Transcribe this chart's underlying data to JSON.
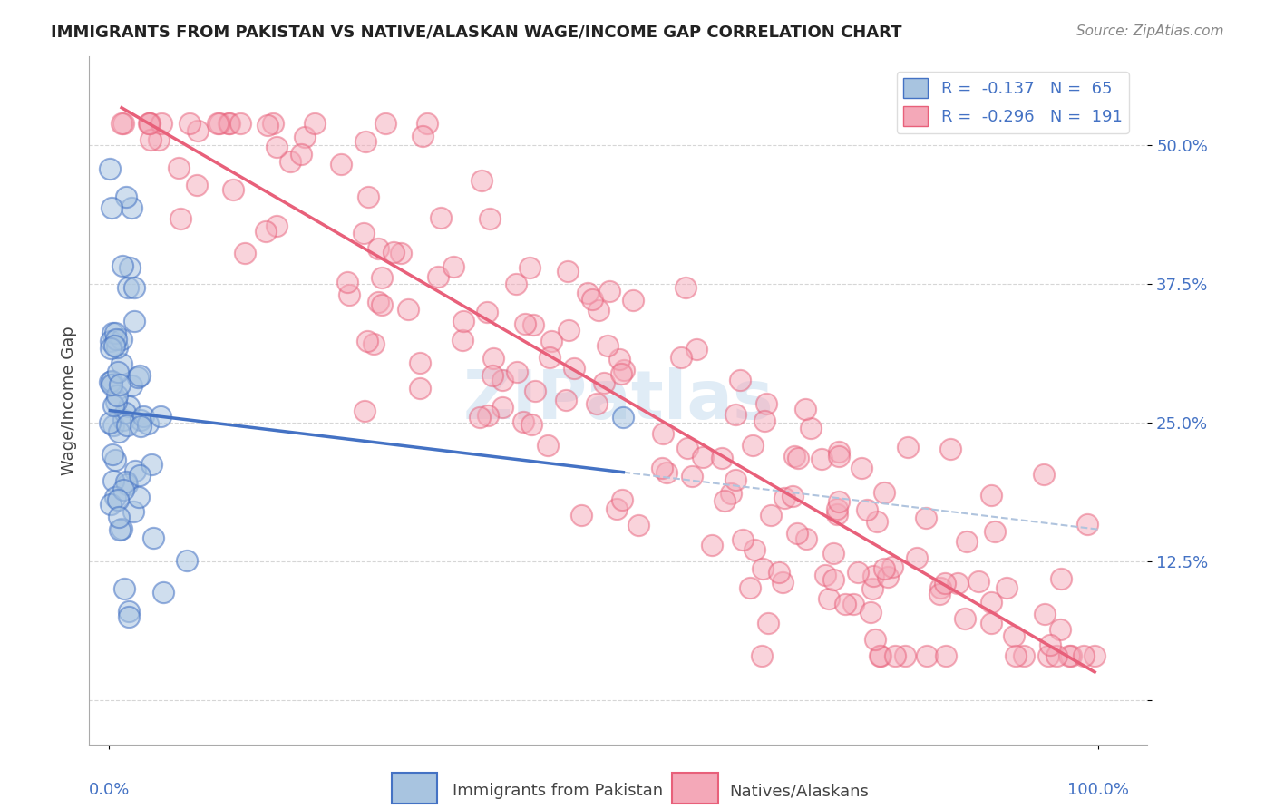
{
  "title": "IMMIGRANTS FROM PAKISTAN VS NATIVE/ALASKAN WAGE/INCOME GAP CORRELATION CHART",
  "source": "Source: ZipAtlas.com",
  "ylabel": "Wage/Income Gap",
  "legend_label1": "Immigrants from Pakistan",
  "legend_label2": "Natives/Alaskans",
  "R1": -0.137,
  "N1": 65,
  "R2": -0.296,
  "N2": 191,
  "color_blue_fill": "#a8c4e0",
  "color_pink_fill": "#f4a8b8",
  "color_blue_line": "#4472c4",
  "color_pink_line": "#e8607a",
  "watermark": "ZIPatlas",
  "background": "#ffffff"
}
